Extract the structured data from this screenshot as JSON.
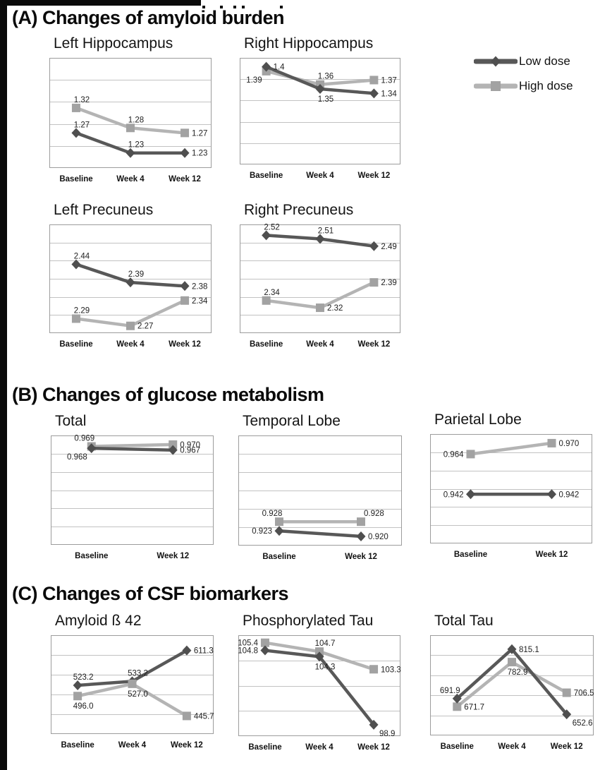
{
  "colors": {
    "background": "#ffffff",
    "grid": "#c2c2c2",
    "plot_border": "#9c9c9c",
    "data_label": "#1f1f1f",
    "tick_label": "#111111",
    "scan_border": "#0a0a0a"
  },
  "series_styles": {
    "low": {
      "label": "Low dose",
      "line_color": "#585858",
      "marker_color": "#4f4f4f",
      "marker": "diamond"
    },
    "high": {
      "label": "High dose",
      "line_color": "#b4b4b4",
      "marker_color": "#a2a2a2",
      "marker": "square"
    }
  },
  "legend": {
    "position": "top-right",
    "items": [
      {
        "key": "low",
        "label": "Low dose"
      },
      {
        "key": "high",
        "label": "High dose"
      }
    ]
  },
  "sections": [
    {
      "label": "A",
      "title": "(A) Changes of amyloid burden"
    },
    {
      "label": "B",
      "title": "(B) Changes of glucose metabolism"
    },
    {
      "label": "C",
      "title": "(C) Changes of CSF biomarkers"
    }
  ],
  "chart_data": [
    {
      "id": "left-hippocampus",
      "section": "A",
      "type": "line",
      "title": "Left Hippocampus",
      "categories": [
        "Baseline",
        "Week 4",
        "Week 12"
      ],
      "ylim": [
        1.2,
        1.42
      ],
      "grid_bands": 5,
      "grid": "horizontal",
      "draw_order": [
        "high",
        "low"
      ],
      "series": [
        {
          "key": "low",
          "name": "Low dose",
          "values": [
            1.27,
            1.23,
            1.23
          ],
          "labels": [
            "1.27",
            "1.23",
            "1.23"
          ],
          "label_pos": [
            "above",
            "above",
            "right"
          ]
        },
        {
          "key": "high",
          "name": "High dose",
          "values": [
            1.32,
            1.28,
            1.27
          ],
          "labels": [
            "1.32",
            "1.28",
            "1.27"
          ],
          "label_pos": [
            "above",
            "above",
            "right"
          ]
        }
      ]
    },
    {
      "id": "right-hippocampus",
      "section": "A",
      "type": "line",
      "title": "Right Hippocampus",
      "categories": [
        "Baseline",
        "Week 4",
        "Week 12"
      ],
      "ylim": [
        1.18,
        1.42
      ],
      "grid_bands": 5,
      "grid": "horizontal",
      "draw_order": [
        "high",
        "low"
      ],
      "series": [
        {
          "key": "low",
          "name": "Low dose",
          "values": [
            1.4,
            1.35,
            1.34
          ],
          "labels": [
            "1.4",
            "1.35",
            "1.34"
          ],
          "label_pos": [
            "right",
            "below",
            "right"
          ]
        },
        {
          "key": "high",
          "name": "High dose",
          "values": [
            1.39,
            1.36,
            1.37
          ],
          "labels": [
            "1.39",
            "1.36",
            "1.37"
          ],
          "label_pos": [
            "below-left",
            "above",
            "right"
          ]
        }
      ]
    },
    {
      "id": "left-precuneus",
      "section": "A",
      "type": "line",
      "title": "Left Precuneus",
      "categories": [
        "Baseline",
        "Week 4",
        "Week 12"
      ],
      "ylim": [
        2.25,
        2.55
      ],
      "grid_bands": 6,
      "grid": "horizontal",
      "draw_order": [
        "high",
        "low"
      ],
      "series": [
        {
          "key": "low",
          "name": "Low dose",
          "values": [
            2.44,
            2.39,
            2.38
          ],
          "labels": [
            "2.44",
            "2.39",
            "2.38"
          ],
          "label_pos": [
            "above",
            "above",
            "right"
          ]
        },
        {
          "key": "high",
          "name": "High dose",
          "values": [
            2.29,
            2.27,
            2.34
          ],
          "labels": [
            "2.29",
            "2.27",
            "2.34"
          ],
          "label_pos": [
            "above",
            "right",
            "right"
          ]
        }
      ]
    },
    {
      "id": "right-precuneus",
      "section": "A",
      "type": "line",
      "title": "Right Precuneus",
      "categories": [
        "Baseline",
        "Week 4",
        "Week 12"
      ],
      "ylim": [
        2.25,
        2.55
      ],
      "grid_bands": 6,
      "grid": "horizontal",
      "draw_order": [
        "high",
        "low"
      ],
      "series": [
        {
          "key": "low",
          "name": "Low dose",
          "values": [
            2.52,
            2.51,
            2.49
          ],
          "labels": [
            "2.52",
            "2.51",
            "2.49"
          ],
          "label_pos": [
            "above",
            "above",
            "right"
          ]
        },
        {
          "key": "high",
          "name": "High dose",
          "values": [
            2.34,
            2.32,
            2.39
          ],
          "labels": [
            "2.34",
            "2.32",
            "2.39"
          ],
          "label_pos": [
            "above",
            "right",
            "right"
          ]
        }
      ]
    },
    {
      "id": "total",
      "section": "B",
      "type": "line",
      "title": "Total",
      "categories": [
        "Baseline",
        "Week 12"
      ],
      "ylim": [
        0.915,
        0.975
      ],
      "grid_bands": 6,
      "grid": "horizontal",
      "draw_order": [
        "high",
        "low"
      ],
      "series": [
        {
          "key": "low",
          "name": "Low dose",
          "values": [
            0.968,
            0.967
          ],
          "labels": [
            "0.968",
            "0.967"
          ],
          "label_pos": [
            "below-left",
            "right"
          ]
        },
        {
          "key": "high",
          "name": "High dose",
          "values": [
            0.969,
            0.97
          ],
          "labels": [
            "0.969",
            "0.970"
          ],
          "label_pos": [
            "above-left",
            "right"
          ]
        }
      ]
    },
    {
      "id": "temporal-lobe",
      "section": "B",
      "type": "line",
      "title": "Temporal Lobe",
      "categories": [
        "Baseline",
        "Week 12"
      ],
      "ylim": [
        0.915,
        0.975
      ],
      "grid_bands": 6,
      "grid": "horizontal",
      "draw_order": [
        "high",
        "low"
      ],
      "series": [
        {
          "key": "low",
          "name": "Low dose",
          "values": [
            0.923,
            0.92
          ],
          "labels": [
            "0.923",
            "0.920"
          ],
          "label_pos": [
            "left",
            "right"
          ]
        },
        {
          "key": "high",
          "name": "High dose",
          "values": [
            0.928,
            0.928
          ],
          "labels": [
            "0.928",
            "0.928"
          ],
          "label_pos": [
            "above-left",
            "above-right"
          ]
        }
      ]
    },
    {
      "id": "parietal-lobe",
      "section": "B",
      "type": "line",
      "title": "Parietal Lobe",
      "categories": [
        "Baseline",
        "Week 12"
      ],
      "ylim": [
        0.915,
        0.975
      ],
      "grid_bands": 6,
      "grid": "horizontal",
      "draw_order": [
        "high",
        "low"
      ],
      "series": [
        {
          "key": "low",
          "name": "Low dose",
          "values": [
            0.942,
            0.942
          ],
          "labels": [
            "0.942",
            "0.942"
          ],
          "label_pos": [
            "left",
            "right"
          ]
        },
        {
          "key": "high",
          "name": "High dose",
          "values": [
            0.964,
            0.97
          ],
          "labels": [
            "0.964",
            "0.970"
          ],
          "label_pos": [
            "left",
            "right"
          ]
        }
      ]
    },
    {
      "id": "amyloid-b42",
      "section": "C",
      "type": "line",
      "title": "Amyloid ß 42",
      "categories": [
        "Baseline",
        "Week 4",
        "Week 12"
      ],
      "ylim": [
        400,
        650
      ],
      "grid_bands": 5,
      "grid": "horizontal",
      "draw_order": [
        "low",
        "high"
      ],
      "series": [
        {
          "key": "low",
          "name": "Low dose",
          "values": [
            523.2,
            533.2,
            611.3
          ],
          "labels": [
            "523.2",
            "533.2",
            "611.3"
          ],
          "label_pos": [
            "above",
            "above",
            "right"
          ]
        },
        {
          "key": "high",
          "name": "High dose",
          "values": [
            496.0,
            527.0,
            445.7
          ],
          "labels": [
            "496.0",
            "527.0",
            "445.7"
          ],
          "label_pos": [
            "below",
            "below",
            "right"
          ]
        }
      ]
    },
    {
      "id": "phosphorylated-tau",
      "section": "C",
      "type": "line",
      "title": "Phosphorylated Tau",
      "categories": [
        "Baseline",
        "Week 4",
        "Week 12"
      ],
      "ylim": [
        98,
        106
      ],
      "grid_bands": 4,
      "grid": "horizontal",
      "draw_order": [
        "high",
        "low"
      ],
      "series": [
        {
          "key": "low",
          "name": "Low dose",
          "values": [
            104.8,
            104.3,
            98.9
          ],
          "labels": [
            "104.8",
            "104.3",
            "98.9"
          ],
          "label_pos": [
            "left",
            "below",
            "below-right"
          ]
        },
        {
          "key": "high",
          "name": "High dose",
          "values": [
            105.4,
            104.7,
            103.3
          ],
          "labels": [
            "105.4",
            "104.7",
            "103.3"
          ],
          "label_pos": [
            "left",
            "above",
            "right"
          ]
        }
      ]
    },
    {
      "id": "total-tau",
      "section": "C",
      "type": "line",
      "title": "Total Tau",
      "categories": [
        "Baseline",
        "Week 4",
        "Week 12"
      ],
      "ylim": [
        600,
        850
      ],
      "grid_bands": 5,
      "grid": "horizontal",
      "draw_order": [
        "high",
        "low"
      ],
      "series": [
        {
          "key": "low",
          "name": "Low dose",
          "values": [
            691.9,
            815.1,
            652.6
          ],
          "labels": [
            "691.9",
            "815.1",
            "652.6"
          ],
          "label_pos": [
            "above-left",
            "right",
            "below-right"
          ]
        },
        {
          "key": "high",
          "name": "High dose",
          "values": [
            671.7,
            782.9,
            706.5
          ],
          "labels": [
            "671.7",
            "782.9",
            "706.5"
          ],
          "label_pos": [
            "right",
            "below",
            "right"
          ]
        }
      ]
    }
  ]
}
